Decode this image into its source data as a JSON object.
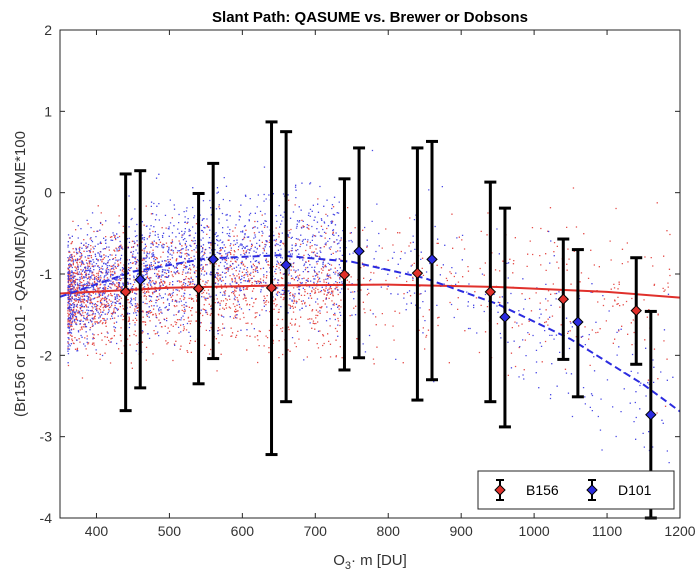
{
  "chart_data": {
    "type": "scatter",
    "title": "Slant Path: QASUME vs. Brewer or Dobsons",
    "xlabel_main": "O",
    "xlabel_sub": "3",
    "xlabel_rest": "· m [DU]",
    "ylabel": "(Br156 or D101 - QASUME)/QASUME*100",
    "xlim": [
      350,
      1200
    ],
    "ylim": [
      -4,
      2
    ],
    "x_ticks": [
      400,
      500,
      600,
      700,
      800,
      900,
      1000,
      1100,
      1200
    ],
    "y_ticks": [
      -4,
      -3,
      -2,
      -1,
      0,
      1,
      2
    ],
    "grid": false,
    "legend_position": "bottom-right",
    "series": [
      {
        "name": "B156",
        "color": "#e0302b",
        "x": [
          440,
          540,
          640,
          740,
          840,
          940,
          1040,
          1140
        ],
        "y": [
          -1.22,
          -1.18,
          -1.17,
          -1.01,
          -0.99,
          -1.22,
          -1.31,
          -1.45
        ],
        "err_upper": [
          0.23,
          -0.01,
          0.87,
          0.17,
          0.55,
          0.13,
          -0.57,
          -0.8
        ],
        "err_lower": [
          -2.68,
          -2.35,
          -3.22,
          -2.18,
          -2.55,
          -2.57,
          -2.05,
          -2.11
        ],
        "fit_x": [
          350,
          500,
          650,
          800,
          950,
          1100,
          1200
        ],
        "fit_y": [
          -1.24,
          -1.17,
          -1.14,
          -1.13,
          -1.16,
          -1.22,
          -1.29
        ]
      },
      {
        "name": "D101",
        "color": "#2b2be0",
        "x": [
          460,
          560,
          660,
          760,
          860,
          960,
          1060,
          1160
        ],
        "y": [
          -1.07,
          -0.82,
          -0.89,
          -0.72,
          -0.82,
          -1.53,
          -1.59,
          -2.73
        ],
        "err_upper": [
          0.27,
          0.36,
          0.75,
          0.55,
          0.63,
          -0.19,
          -0.7,
          -1.46
        ],
        "err_lower": [
          -2.4,
          -2.04,
          -2.57,
          -2.03,
          -2.3,
          -2.88,
          -2.51,
          -4.0
        ],
        "fit_x": [
          350,
          450,
          550,
          650,
          750,
          850,
          950,
          1050,
          1150,
          1200
        ],
        "fit_y": [
          -1.28,
          -0.97,
          -0.81,
          -0.77,
          -0.85,
          -1.05,
          -1.37,
          -1.8,
          -2.36,
          -2.69
        ]
      }
    ]
  }
}
